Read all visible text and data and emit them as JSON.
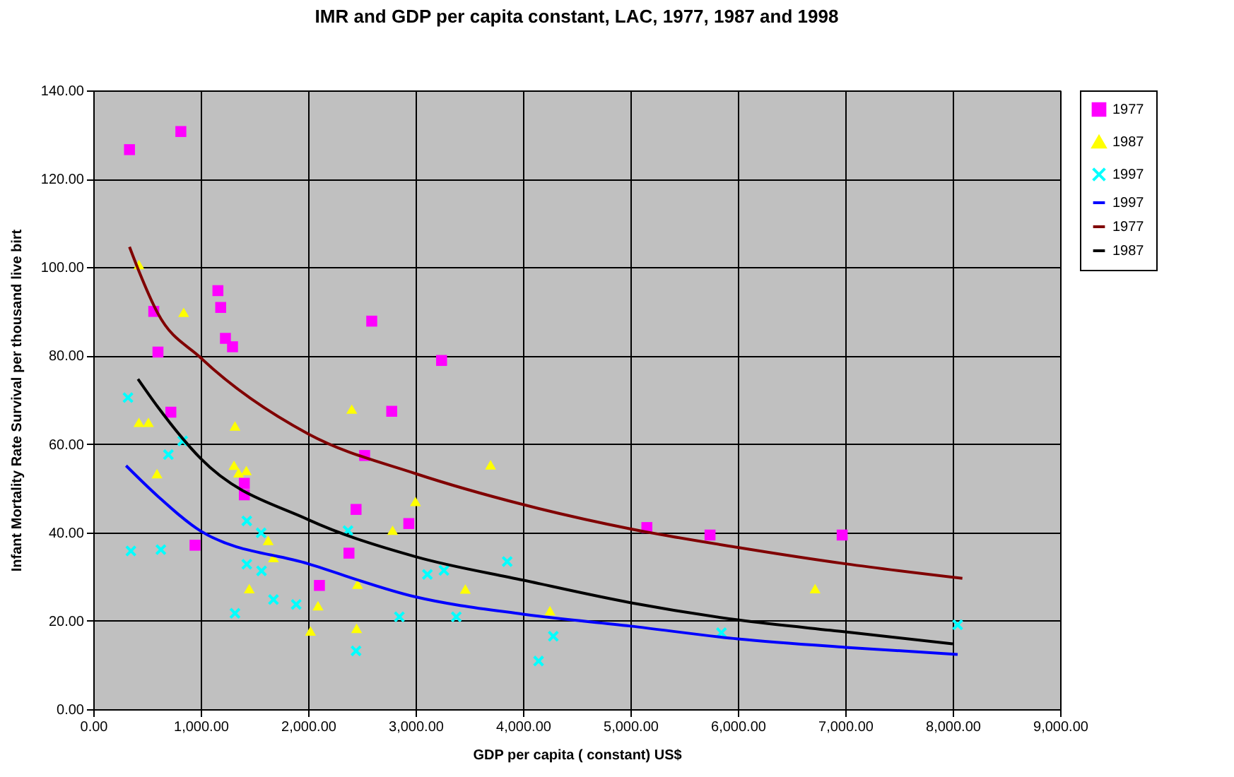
{
  "chart_data": {
    "type": "scatter",
    "title": "IMR and GDP per capita constant, LAC,  1977, 1987 and 1998",
    "xlabel": "GDP per capita ( constant) US$",
    "ylabel": "Infant Mortality Rate Survival per thousand live birt",
    "xlim": [
      0,
      9000
    ],
    "ylim": [
      0,
      140
    ],
    "xticks": [
      {
        "value": 0,
        "label": "0.00"
      },
      {
        "value": 1000,
        "label": "1,000.00"
      },
      {
        "value": 2000,
        "label": "2,000.00"
      },
      {
        "value": 3000,
        "label": "3,000.00"
      },
      {
        "value": 4000,
        "label": "4,000.00"
      },
      {
        "value": 5000,
        "label": "5,000.00"
      },
      {
        "value": 6000,
        "label": "6,000.00"
      },
      {
        "value": 7000,
        "label": "7,000.00"
      },
      {
        "value": 8000,
        "label": "8,000.00"
      },
      {
        "value": 9000,
        "label": "9,000.00"
      }
    ],
    "yticks": [
      {
        "value": 0,
        "label": "0.00"
      },
      {
        "value": 20,
        "label": "20.00"
      },
      {
        "value": 40,
        "label": "40.00"
      },
      {
        "value": 60,
        "label": "60.00"
      },
      {
        "value": 80,
        "label": "80.00"
      },
      {
        "value": 100,
        "label": "100.00"
      },
      {
        "value": 120,
        "label": "120.00"
      },
      {
        "value": 140,
        "label": "140.00"
      }
    ],
    "grid": true,
    "legend": "right",
    "series": [
      {
        "name": "1977",
        "marker": "square",
        "color": "#ff00ff",
        "x": [
          337,
          815,
          563,
          602,
          1160,
          1186,
          1230,
          1296,
          2592,
          3242,
          722,
          2778,
          2526,
          1406,
          1406,
          2446,
          2937,
          947,
          2380,
          2105,
          5153,
          5741,
          6971
        ],
        "values": [
          126.6,
          130.7,
          90.0,
          80.8,
          94.7,
          90.9,
          83.9,
          82.0,
          87.8,
          78.9,
          67.2,
          67.4,
          57.4,
          51.1,
          48.5,
          45.2,
          42.0,
          37.1,
          35.3,
          28.0,
          41.1,
          39.4,
          39.4
        ]
      },
      {
        "name": "1987",
        "marker": "triangle",
        "color": "#ffff00",
        "x": [
          425,
          841,
          425,
          513,
          1319,
          2406,
          593,
          1310,
          1425,
          1353,
          2999,
          2786,
          1628,
          1677,
          1452,
          2092,
          2022,
          2451,
          2460,
          3463,
          3698,
          4251,
          6719
        ],
        "values": [
          100.6,
          89.8,
          64.9,
          64.9,
          64.1,
          67.9,
          53.3,
          55.2,
          54.0,
          53.5,
          47.0,
          40.5,
          38.2,
          34.3,
          27.3,
          23.4,
          17.7,
          18.3,
          28.3,
          27.2,
          55.3,
          22.3,
          27.3
        ]
      },
      {
        "name": "1997",
        "marker": "cross",
        "color": "#00ffff",
        "x": [
          323,
          832,
          699,
          350,
          629,
          1429,
          1562,
          2371,
          1429,
          1566,
          3110,
          3264,
          1319,
          1677,
          1889,
          2849,
          3379,
          2446,
          3853,
          4282,
          4145,
          5847,
          8046
        ],
        "values": [
          70.5,
          60.7,
          57.6,
          35.8,
          36.1,
          42.6,
          39.9,
          40.4,
          32.8,
          31.3,
          30.5,
          31.4,
          21.7,
          24.8,
          23.7,
          20.9,
          20.9,
          13.2,
          33.4,
          16.5,
          10.9,
          17.3,
          19.1
        ]
      },
      {
        "name": "1997",
        "type": "line",
        "marker": "none",
        "color": "#0000ff",
        "x": [
          305,
          600,
          1000,
          2000,
          3000,
          4000,
          5000,
          6000,
          7000,
          8046
        ],
        "values": [
          55.1,
          48.2,
          40.3,
          32.9,
          25.4,
          21.5,
          18.8,
          15.9,
          14.0,
          12.4
        ]
      },
      {
        "name": "1977",
        "type": "line",
        "marker": "none",
        "color": "#800000",
        "x": [
          337,
          425,
          600,
          1000,
          2000,
          3000,
          4000,
          5000,
          6000,
          7000,
          8090
        ],
        "values": [
          104.6,
          99.1,
          89.6,
          79.5,
          62.3,
          53.3,
          46.3,
          40.8,
          36.6,
          32.9,
          29.6
        ]
      },
      {
        "name": "1987",
        "type": "line",
        "marker": "none",
        "color": "#000000",
        "x": [
          416,
          600,
          1000,
          2000,
          3000,
          4000,
          5000,
          6000,
          7000,
          8000
        ],
        "values": [
          74.7,
          68.4,
          56.7,
          42.9,
          34.5,
          29.2,
          24.1,
          20.2,
          17.5,
          14.8
        ]
      }
    ]
  }
}
